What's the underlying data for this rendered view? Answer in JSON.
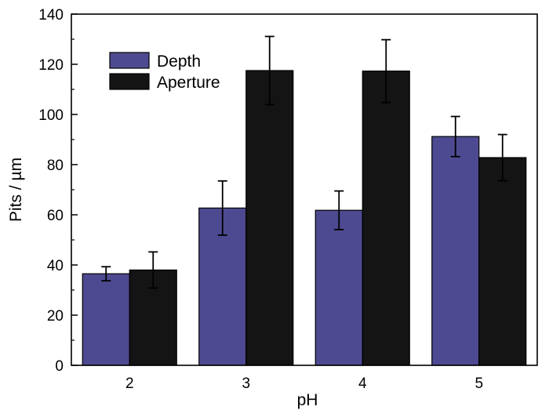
{
  "chart_data": {
    "type": "bar",
    "title": "",
    "xlabel": "pH",
    "ylabel": "Pits / µm",
    "ylim": [
      0,
      140
    ],
    "yticks": [
      0,
      20,
      40,
      60,
      80,
      100,
      120,
      140
    ],
    "categories": [
      "2",
      "3",
      "4",
      "5"
    ],
    "series": [
      {
        "name": "Depth",
        "color": "#4e4a91",
        "values": [
          36.5,
          62.7,
          61.8,
          91.2
        ],
        "errors": [
          2.8,
          10.8,
          7.7,
          8.0
        ]
      },
      {
        "name": "Aperture",
        "color": "#141414",
        "values": [
          38,
          117.5,
          117.3,
          82.8
        ],
        "errors": [
          7.2,
          13.6,
          12.5,
          9.2
        ]
      }
    ],
    "legend_position": "top-left"
  }
}
